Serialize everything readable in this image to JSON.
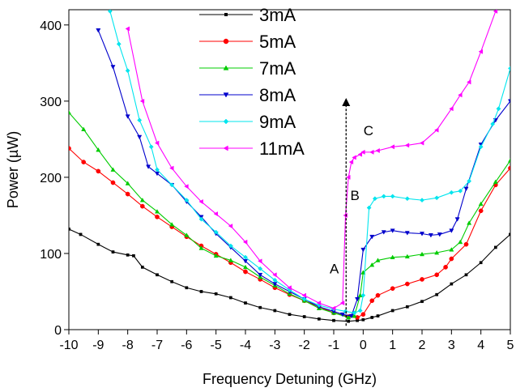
{
  "chart_data": {
    "type": "line",
    "xlabel": "Frequency Detuning (GHz)",
    "ylabel": "Power (µW)",
    "xlim": [
      -10,
      5
    ],
    "ylim": [
      0,
      420
    ],
    "xticks": [
      -10,
      -9,
      -8,
      -7,
      -6,
      -5,
      -4,
      -3,
      -2,
      -1,
      0,
      1,
      2,
      3,
      4,
      5
    ],
    "yticks": [
      0,
      100,
      200,
      300,
      400
    ],
    "legend_position": "top-center",
    "series": [
      {
        "name": "3mA",
        "color": "#000000",
        "marker": "square",
        "x": [
          -10,
          -9.6,
          -9,
          -8.5,
          -8,
          -7.8,
          -7.5,
          -7,
          -6.5,
          -6,
          -5.5,
          -5,
          -4.5,
          -4,
          -3.5,
          -3,
          -2.5,
          -2,
          -1.5,
          -1,
          -0.5,
          -0.2,
          0,
          0.3,
          0.5,
          1,
          1.5,
          2,
          2.5,
          3,
          3.5,
          4,
          4.5,
          5
        ],
        "y": [
          132,
          125,
          112,
          102,
          98,
          97,
          82,
          72,
          63,
          55,
          50,
          47,
          42,
          35,
          29,
          25,
          20,
          17,
          14,
          12,
          11,
          12,
          13,
          16,
          18,
          25,
          30,
          37,
          46,
          60,
          72,
          88,
          108,
          125
        ]
      },
      {
        "name": "5mA",
        "color": "#ff0000",
        "marker": "circle",
        "x": [
          -10,
          -9.5,
          -9,
          -8.5,
          -8,
          -7.5,
          -7,
          -6.5,
          -6,
          -5.5,
          -5,
          -4.5,
          -4,
          -3.5,
          -3,
          -2.5,
          -2,
          -1.5,
          -1,
          -0.5,
          -0.2,
          0,
          0.3,
          0.5,
          1,
          1.5,
          2,
          2.5,
          2.8,
          3,
          3.5,
          4,
          4.5,
          5
        ],
        "y": [
          238,
          220,
          208,
          193,
          178,
          162,
          148,
          135,
          122,
          110,
          99,
          88,
          76,
          66,
          55,
          46,
          38,
          30,
          22,
          17,
          16,
          20,
          38,
          45,
          54,
          60,
          66,
          72,
          82,
          93,
          112,
          156,
          190,
          212
        ]
      },
      {
        "name": "7mA",
        "color": "#00cc00",
        "marker": "triangle-up",
        "x": [
          -10,
          -9.5,
          -9,
          -8.5,
          -8,
          -7.5,
          -7,
          -6.5,
          -6,
          -5.5,
          -5,
          -4.5,
          -4,
          -3.5,
          -3,
          -2.5,
          -2,
          -1.5,
          -1,
          -0.5,
          -0.3,
          -0.1,
          0,
          0.3,
          0.5,
          1,
          1.5,
          2,
          2.5,
          3,
          3.3,
          3.6,
          4,
          4.5,
          5
        ],
        "y": [
          285,
          263,
          236,
          210,
          192,
          170,
          155,
          138,
          124,
          107,
          97,
          91,
          82,
          69,
          58,
          47,
          38,
          28,
          22,
          16,
          18,
          45,
          75,
          85,
          91,
          95,
          96,
          99,
          101,
          105,
          115,
          140,
          165,
          194,
          222
        ]
      },
      {
        "name": "8mA",
        "color": "#0000cc",
        "marker": "triangle-down",
        "x": [
          -9,
          -8.5,
          -8,
          -7.6,
          -7.3,
          -7,
          -6.5,
          -6,
          -5.5,
          -5,
          -4.5,
          -4,
          -3.5,
          -3,
          -2.5,
          -2,
          -1.5,
          -1,
          -0.7,
          -0.4,
          -0.2,
          0,
          0.3,
          0.7,
          1,
          1.5,
          2,
          2.3,
          2.6,
          3,
          3.2,
          3.5,
          4,
          4.5,
          5
        ],
        "y": [
          393,
          345,
          280,
          253,
          214,
          205,
          190,
          168,
          148,
          126,
          108,
          90,
          72,
          60,
          50,
          40,
          30,
          24,
          20,
          18,
          40,
          105,
          122,
          128,
          130,
          127,
          126,
          124,
          125,
          130,
          145,
          185,
          243,
          275,
          300
        ]
      },
      {
        "name": "9mA",
        "color": "#00e5ee",
        "marker": "diamond",
        "x": [
          -8.6,
          -8.3,
          -8,
          -7.6,
          -7.2,
          -7,
          -6.5,
          -6,
          -5.5,
          -5,
          -4.5,
          -4,
          -3.5,
          -3,
          -2.5,
          -2,
          -1.5,
          -1,
          -0.6,
          -0.3,
          -0.1,
          0,
          0.2,
          0.4,
          0.7,
          1,
          1.5,
          2,
          2.5,
          3,
          3.3,
          3.6,
          4,
          4.4,
          4.6,
          5
        ],
        "y": [
          418,
          375,
          340,
          275,
          240,
          210,
          190,
          170,
          145,
          128,
          110,
          95,
          80,
          65,
          52,
          40,
          32,
          27,
          24,
          22,
          25,
          45,
          160,
          172,
          175,
          175,
          172,
          170,
          173,
          180,
          182,
          195,
          240,
          270,
          290,
          343
        ]
      },
      {
        "name": "11mA",
        "color": "#ff00ff",
        "marker": "triangle-left",
        "x": [
          -8,
          -7.5,
          -7,
          -6.5,
          -6,
          -5.5,
          -5,
          -4.5,
          -4,
          -3.5,
          -3,
          -2.5,
          -2,
          -1.5,
          -1,
          -0.7,
          -0.6,
          -0.5,
          -0.4,
          -0.3,
          -0.1,
          0,
          0.3,
          0.5,
          1,
          1.5,
          2,
          2.5,
          3,
          3.3,
          3.6,
          4,
          4.5
        ],
        "y": [
          395,
          300,
          245,
          212,
          188,
          168,
          152,
          136,
          115,
          90,
          72,
          55,
          45,
          35,
          28,
          35,
          150,
          200,
          220,
          226,
          230,
          233,
          233,
          235,
          240,
          242,
          245,
          262,
          290,
          308,
          325,
          365,
          418
        ]
      }
    ],
    "annotations": [
      {
        "text": "A",
        "x": -0.98,
        "y": 74
      },
      {
        "text": "B",
        "x": -0.28,
        "y": 170
      },
      {
        "text": "C",
        "x": 0.18,
        "y": 255
      }
    ],
    "arrow": {
      "x": -0.58,
      "y_from": 5,
      "y_to": 303
    }
  }
}
